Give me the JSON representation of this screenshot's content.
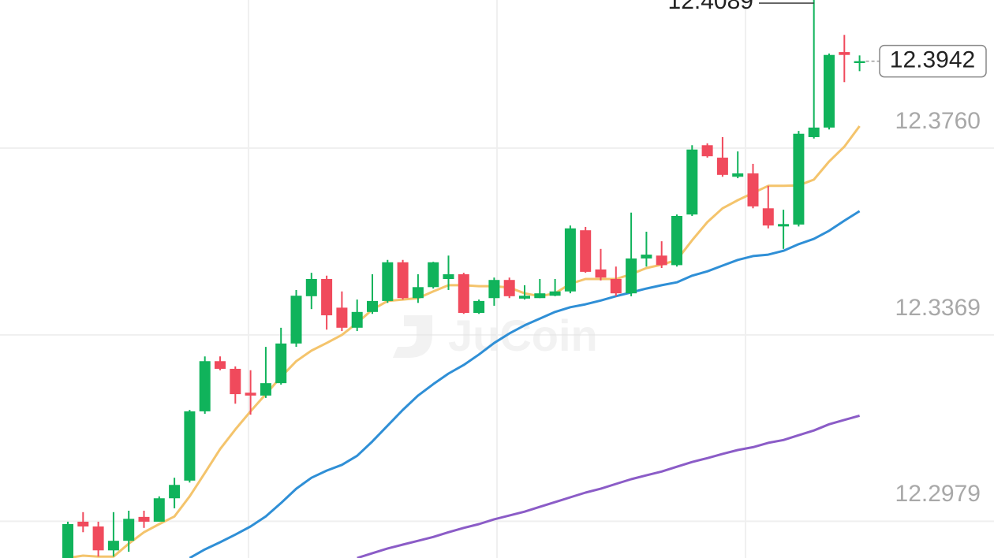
{
  "chart_data": {
    "type": "candlestick",
    "watermark": "JuCoin",
    "up_color": "#10b35b",
    "down_color": "#f04a5c",
    "open": [
      12.2902,
      12.2978,
      12.2968,
      12.2918,
      12.2938,
      12.2988,
      12.2978,
      12.3027,
      12.3064,
      12.3209,
      12.3314,
      12.3298,
      12.3248,
      12.3242,
      12.3268,
      12.3351,
      12.345,
      12.3486,
      12.3426,
      12.3384,
      12.3417,
      12.344,
      12.3521,
      12.3446,
      12.3469,
      12.3486,
      12.3496,
      12.3415,
      12.3446,
      12.3484,
      12.3445,
      12.3446,
      12.3451,
      12.346,
      12.3588,
      12.3506,
      12.3486,
      12.3456,
      12.3529,
      12.3535,
      12.3515,
      12.3621,
      12.3766,
      12.374,
      12.37,
      12.3707,
      12.3634,
      12.3596,
      12.36,
      12.3783,
      12.3803,
      12.3961,
      12.3938
    ],
    "high": [
      12.2978,
      12.2998,
      12.2978,
      12.2998,
      12.3001,
      12.3001,
      12.3031,
      12.307,
      12.3212,
      12.3324,
      12.3324,
      12.3303,
      12.3295,
      12.3344,
      12.3384,
      12.3463,
      12.3499,
      12.3493,
      12.346,
      12.3443,
      12.3496,
      12.3526,
      12.3526,
      12.3496,
      12.3522,
      12.3535,
      12.3499,
      12.3443,
      12.3489,
      12.3489,
      12.3473,
      12.3486,
      12.3486,
      12.3598,
      12.3595,
      12.3549,
      12.3512,
      12.3625,
      12.3585,
      12.3565,
      12.3621,
      12.3766,
      12.377,
      12.3783,
      12.3753,
      12.3727,
      12.3681,
      12.3631,
      12.3796,
      12.4089,
      12.3958,
      12.3997,
      12.3954
    ],
    "low": [
      12.2902,
      12.2956,
      12.2905,
      12.2905,
      12.2915,
      12.2965,
      12.2978,
      12.3006,
      12.306,
      12.3204,
      12.3295,
      12.3225,
      12.3202,
      12.3237,
      12.3265,
      12.3344,
      12.3423,
      12.338,
      12.3377,
      12.3377,
      12.3413,
      12.3436,
      12.3443,
      12.3436,
      12.3466,
      12.3463,
      12.3413,
      12.3413,
      12.343,
      12.3446,
      12.3443,
      12.3446,
      12.345,
      12.3456,
      12.3499,
      12.3483,
      12.345,
      12.345,
      12.3512,
      12.3509,
      12.3512,
      12.3618,
      12.374,
      12.37,
      12.3697,
      12.3634,
      12.3592,
      12.3549,
      12.3596,
      12.378,
      12.3799,
      12.3898,
      12.3921
    ],
    "close": [
      12.2973,
      12.2968,
      12.2918,
      12.2938,
      12.2984,
      12.2978,
      12.3027,
      12.3055,
      12.3209,
      12.3314,
      12.3298,
      12.3245,
      12.3242,
      12.3268,
      12.3351,
      12.3451,
      12.3486,
      12.341,
      12.3384,
      12.3417,
      12.344,
      12.3521,
      12.3446,
      12.3469,
      12.3521,
      12.3496,
      12.3415,
      12.344,
      12.3484,
      12.345,
      12.3451,
      12.3456,
      12.346,
      12.3592,
      12.3501,
      12.3489,
      12.3456,
      12.3529,
      12.3537,
      12.3515,
      12.3618,
      12.3757,
      12.3743,
      12.3704,
      12.3707,
      12.3638,
      12.3598,
      12.3601,
      12.379,
      12.3803,
      12.3955,
      12.3955,
      12.3942
    ],
    "lines": [
      {
        "color": "#f4c46c",
        "values": [
          12.2902,
          12.2907,
          12.2905,
          12.2905,
          12.2932,
          12.2956,
          12.2973,
          12.2989,
          12.3031,
          12.308,
          12.313,
          12.3171,
          12.3209,
          12.3245,
          12.3281,
          12.3314,
          12.3336,
          12.3352,
          12.3369,
          12.3394,
          12.3422,
          12.344,
          12.3443,
          12.3446,
          12.346,
          12.3473,
          12.3473,
          12.3471,
          12.3471,
          12.3468,
          12.3456,
          12.345,
          12.3456,
          12.3476,
          12.3486,
          12.3486,
          12.3486,
          12.3496,
          12.3509,
          12.3516,
          12.3526,
          12.3567,
          12.3605,
          12.3634,
          12.3651,
          12.3666,
          12.3681,
          12.3681,
          12.3682,
          12.3694,
          12.3732,
          12.3763,
          12.3806
        ]
      },
      {
        "color": "#2f8fd6",
        "values": [
          null,
          null,
          null,
          null,
          null,
          null,
          null,
          null,
          12.2902,
          12.292,
          12.2935,
          12.2951,
          12.2968,
          12.2989,
          12.3017,
          12.3047,
          12.307,
          12.3085,
          12.3097,
          12.3116,
          12.3146,
          12.3179,
          12.3212,
          12.3242,
          12.3266,
          12.3288,
          12.3306,
          12.3328,
          12.3352,
          12.3372,
          12.3389,
          12.3403,
          12.3417,
          12.3427,
          12.3433,
          12.3441,
          12.345,
          12.3458,
          12.3466,
          12.3473,
          12.3479,
          12.3493,
          12.3502,
          12.3514,
          12.3526,
          12.3534,
          12.3537,
          12.3545,
          12.3559,
          12.357,
          12.3587,
          12.3608,
          12.3628
        ]
      },
      {
        "color": "#8b5cc7",
        "values": [
          null,
          null,
          null,
          null,
          null,
          null,
          null,
          null,
          null,
          null,
          null,
          null,
          null,
          null,
          null,
          null,
          null,
          null,
          null,
          12.2902,
          12.2912,
          12.2922,
          12.293,
          12.2938,
          12.2946,
          12.2956,
          12.2965,
          12.2973,
          12.2983,
          12.2991,
          12.2999,
          12.3009,
          12.3019,
          12.3029,
          12.3039,
          12.3047,
          12.3057,
          12.3067,
          12.3075,
          12.3083,
          12.3093,
          12.3103,
          12.3111,
          12.312,
          12.3128,
          12.3134,
          12.3143,
          12.3149,
          12.3159,
          12.3169,
          12.3182,
          12.3191,
          12.32
        ]
      }
    ],
    "ylim": [
      12.2902,
      12.407
    ],
    "yticks": [
      {
        "value": 12.376,
        "label": "12.3760"
      },
      {
        "value": 12.3369,
        "label": "12.3369"
      },
      {
        "value": 12.2979,
        "label": "12.2979"
      }
    ],
    "grid": true
  }
}
